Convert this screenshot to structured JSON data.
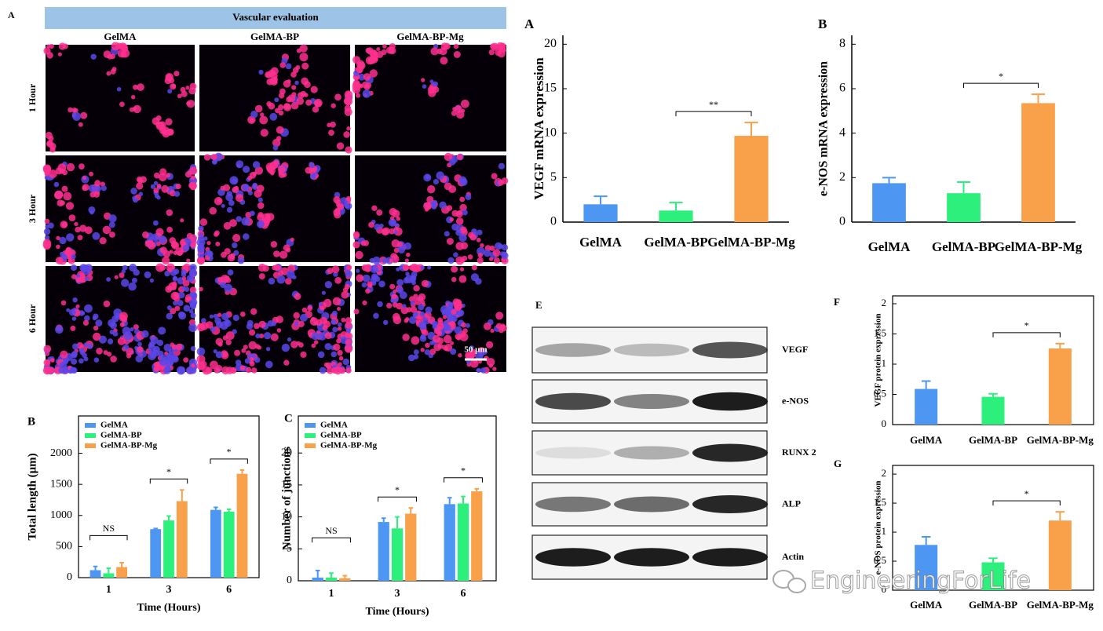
{
  "figure": {
    "panel": "A",
    "title": "Vascular evaluation",
    "columns": [
      "GelMA",
      "GelMA-BP",
      "GelMA-BP-Mg"
    ],
    "rows": [
      "1 Hour",
      "3 Hour",
      "6 Hour"
    ],
    "scale_bar": "50 μm"
  },
  "blot": {
    "panel": "E",
    "labels": [
      "VEGF",
      "e-NOS",
      "RUNX 2",
      "ALP",
      "Actin"
    ]
  },
  "watermark": "EngineeringForLife",
  "chart_data": [
    {
      "type": "bar",
      "panel": "A",
      "ylabel": "VEGF mRNA expression",
      "categories": [
        "GelMA",
        "GelMA-BP",
        "GelMA-BP-Mg"
      ],
      "values": [
        2,
        1.3,
        9.7
      ],
      "errors": [
        0.9,
        0.9,
        1.5
      ],
      "colors": [
        "#4d96f2",
        "#2df07c",
        "#f8a04a"
      ],
      "ylim": [
        0,
        21
      ],
      "yticks": [
        0,
        5,
        10,
        15,
        20
      ],
      "annotations": [
        "**"
      ]
    },
    {
      "type": "bar",
      "panel": "B",
      "ylabel": "e-NOS mRNA expression",
      "categories": [
        "GelMA",
        "GelMA-BP",
        "GelMA-BP-Mg"
      ],
      "values": [
        1.75,
        1.3,
        5.35
      ],
      "errors": [
        0.25,
        0.5,
        0.4
      ],
      "colors": [
        "#4d96f2",
        "#2df07c",
        "#f8a04a"
      ],
      "ylim": [
        0,
        8.4
      ],
      "yticks": [
        0,
        2,
        4,
        6,
        8
      ],
      "annotations": [
        "*"
      ]
    },
    {
      "type": "bar",
      "panel": "F",
      "ylabel": "VEGF protein  expression",
      "categories": [
        "GelMA",
        "GelMA-BP",
        "GelMA-BP-Mg"
      ],
      "values": [
        0.59,
        0.46,
        1.26
      ],
      "errors": [
        0.13,
        0.05,
        0.08
      ],
      "colors": [
        "#4d96f2",
        "#2df07c",
        "#f8a04a"
      ],
      "ylim": [
        0,
        2.13
      ],
      "yticks": [
        0,
        0.5,
        1,
        1.5,
        2
      ],
      "annotations": [
        "*"
      ]
    },
    {
      "type": "bar",
      "panel": "G",
      "ylabel": "e-NOS protein expression",
      "categories": [
        "GelMA",
        "GelMA-BP",
        "GelMA-BP-Mg"
      ],
      "values": [
        0.78,
        0.48,
        1.2
      ],
      "errors": [
        0.14,
        0.07,
        0.15
      ],
      "colors": [
        "#4d96f2",
        "#2df07c",
        "#f8a04a"
      ],
      "ylim": [
        0,
        2.15
      ],
      "yticks": [
        0,
        0.5,
        1,
        1.5,
        2
      ],
      "annotations": [
        "*"
      ]
    },
    {
      "type": "bar",
      "panel": "B",
      "ylabel": "Total length (μm)",
      "xlabel": "Time (Hours)",
      "categories": [
        "1",
        "3",
        "6"
      ],
      "series": [
        {
          "name": "GelMA",
          "color": "#4d96f2",
          "values": [
            120,
            780,
            1090
          ],
          "errors": [
            60,
            10,
            40
          ]
        },
        {
          "name": "GelMA-BP",
          "color": "#2df07c",
          "values": [
            70,
            920,
            1060
          ],
          "errors": [
            80,
            70,
            40
          ]
        },
        {
          "name": "GelMA-BP-Mg",
          "color": "#f8a04a",
          "values": [
            170,
            1230,
            1670
          ],
          "errors": [
            70,
            180,
            60
          ]
        }
      ],
      "ylim": [
        0,
        2600
      ],
      "yticks": [
        0,
        500,
        1000,
        1500,
        2000
      ],
      "legend": "upper left",
      "annotations": [
        "NS",
        "*",
        "*"
      ]
    },
    {
      "type": "bar",
      "panel": "C",
      "ylabel": "Number of junctions",
      "xlabel": "Time (Hours)",
      "categories": [
        "1",
        "3",
        "6"
      ],
      "series": [
        {
          "name": "GelMA",
          "color": "#4d96f2",
          "values": [
            0.5,
            9.2,
            12
          ],
          "errors": [
            1.1,
            0.6,
            1
          ]
        },
        {
          "name": "GelMA-BP",
          "color": "#2df07c",
          "values": [
            0.5,
            8.2,
            12.1
          ],
          "errors": [
            0.7,
            1.8,
            1.1
          ]
        },
        {
          "name": "GelMA-BP-Mg",
          "color": "#f8a04a",
          "values": [
            0.4,
            10.5,
            14
          ],
          "errors": [
            0.4,
            0.9,
            0.4
          ]
        }
      ],
      "ylim": [
        0,
        25.8
      ],
      "yticks": [
        0,
        5,
        10,
        15,
        20
      ],
      "legend": "upper left",
      "annotations": [
        "NS",
        "*",
        "*"
      ]
    }
  ]
}
